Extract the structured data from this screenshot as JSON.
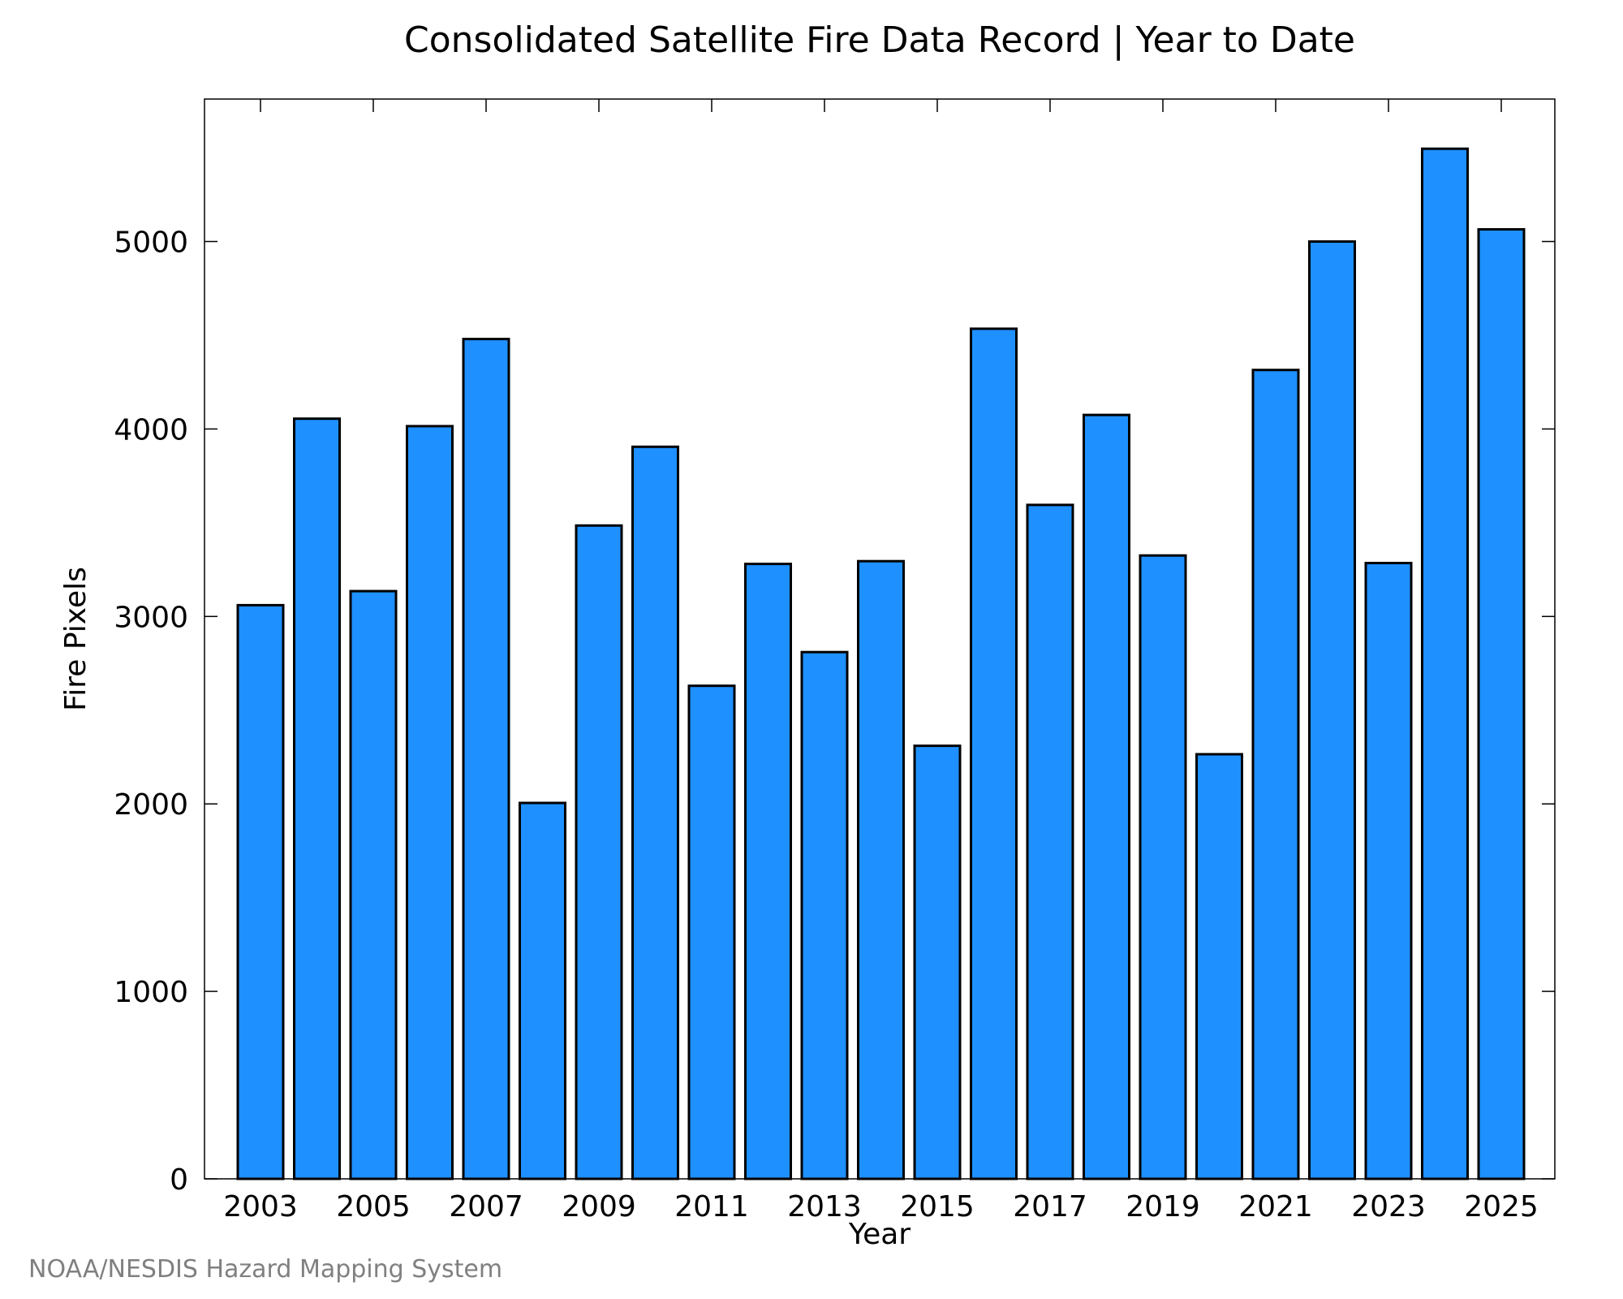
{
  "chart_data": {
    "type": "bar",
    "title": "Consolidated Satellite Fire Data Record | Year to Date",
    "xlabel": "Year",
    "ylabel": "Fire Pixels",
    "categories": [
      "2003",
      "2004",
      "2005",
      "2006",
      "2007",
      "2008",
      "2009",
      "2010",
      "2011",
      "2012",
      "2013",
      "2014",
      "2015",
      "2016",
      "2017",
      "2018",
      "2019",
      "2020",
      "2021",
      "2022",
      "2023",
      "2024",
      "2025"
    ],
    "values": [
      3060,
      4055,
      3135,
      4015,
      4480,
      2005,
      3485,
      3905,
      2630,
      3280,
      2810,
      3295,
      2310,
      4535,
      3595,
      4075,
      3325,
      2265,
      4315,
      5000,
      3285,
      5495,
      5065
    ],
    "x_tick_labels": [
      "2003",
      "2005",
      "2007",
      "2009",
      "2011",
      "2013",
      "2015",
      "2017",
      "2019",
      "2021",
      "2023",
      "2025"
    ],
    "y_ticks": [
      0,
      1000,
      2000,
      3000,
      4000,
      5000
    ],
    "ylim": [
      0,
      5760
    ],
    "grid": false,
    "legend": "none",
    "colors": {
      "bar_fill": "#1e90ff",
      "bar_stroke": "#000000",
      "credit": "#808080"
    }
  },
  "footer": {
    "credit": "NOAA/NESDIS Hazard Mapping System"
  }
}
